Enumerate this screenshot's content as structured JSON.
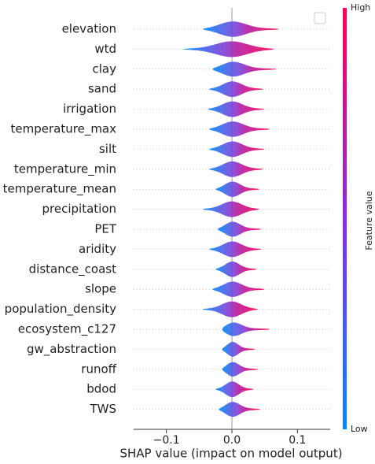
{
  "chart_data": {
    "type": "violin",
    "categories": [
      "elevation",
      "wtd",
      "clay",
      "sand",
      "irrigation",
      "temperature_max",
      "silt",
      "temperature_min",
      "temperature_mean",
      "precipitation",
      "PET",
      "aridity",
      "distance_coast",
      "slope",
      "population_density",
      "ecosystem_c127",
      "gw_abstraction",
      "runoff",
      "bdod",
      "TWS"
    ],
    "min": [
      -0.045,
      -0.075,
      -0.03,
      -0.035,
      -0.037,
      -0.035,
      -0.035,
      -0.035,
      -0.025,
      -0.045,
      -0.022,
      -0.035,
      -0.025,
      -0.03,
      -0.045,
      -0.015,
      -0.015,
      -0.015,
      -0.025,
      -0.02
    ],
    "max": [
      0.072,
      0.065,
      0.068,
      0.048,
      0.05,
      0.058,
      0.05,
      0.048,
      0.042,
      0.042,
      0.045,
      0.045,
      0.038,
      0.05,
      0.04,
      0.058,
      0.035,
      0.04,
      0.033,
      0.043
    ],
    "xlabel": "SHAP value (impact on model output)",
    "xlim": [
      -0.15,
      0.15
    ],
    "xticks": [
      {
        "value": -0.1,
        "label": "−0.1"
      },
      {
        "value": 0,
        "label": "0.0"
      },
      {
        "value": 0.1,
        "label": "0.1"
      }
    ],
    "colorbar": {
      "label": "Feature value",
      "high": "High",
      "low": "Low",
      "low_color": "#008afb",
      "high_color": "#ff0052"
    }
  }
}
